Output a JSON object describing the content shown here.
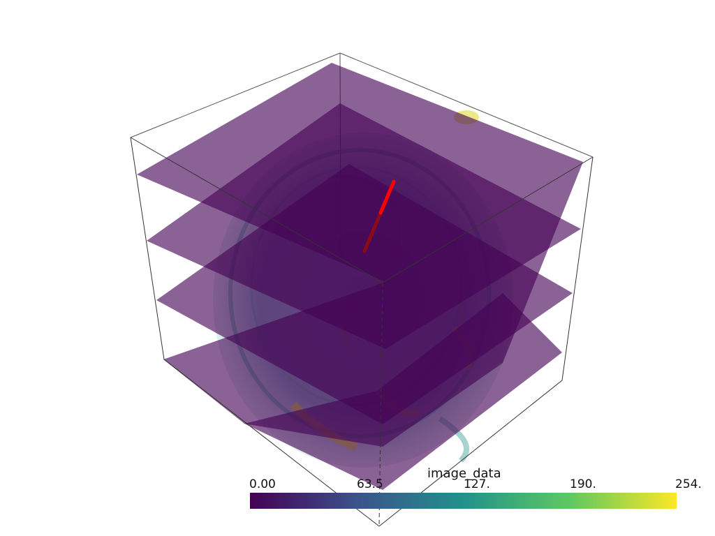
{
  "scalar_bar": {
    "title": "image_data",
    "ticks": [
      "0.00",
      "63.5",
      "127.",
      "190.",
      "254."
    ],
    "range": [
      0,
      254
    ],
    "colormap": "viridis",
    "colors": [
      "#440154",
      "#3b528b",
      "#21918c",
      "#5ec962",
      "#fde725"
    ]
  },
  "scene": {
    "background": "#ffffff",
    "slice_color": "#440154",
    "line_color": "#ff0000",
    "outline_color": "#333333"
  }
}
